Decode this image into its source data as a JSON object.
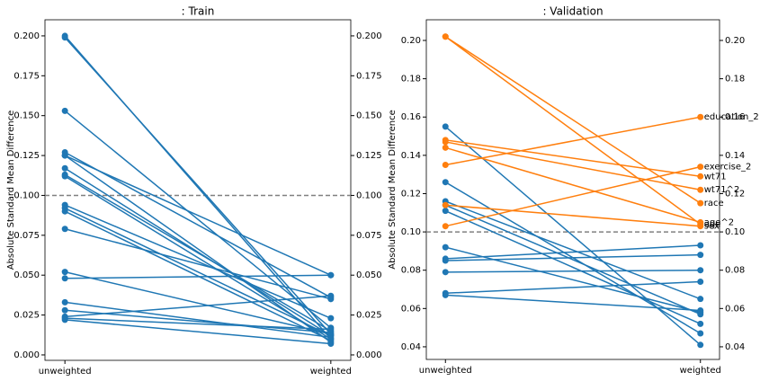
{
  "chart_data": [
    {
      "type": "slope",
      "title": ": Train",
      "ylabel": "Absolute Standard Mean Difference",
      "categories": [
        "unweighted",
        "weighted"
      ],
      "ylim": [
        -0.0034,
        0.2101
      ],
      "yticks": [
        {
          "value": 0,
          "label": "0.000"
        },
        0.025,
        {
          "value": 0.05,
          "label": "0.050"
        },
        0.075,
        {
          "value": 0.1,
          "label": "0.100"
        },
        0.125,
        {
          "value": 0.15,
          "label": "0.150"
        },
        0.175,
        {
          "value": 0.2,
          "label": "0.200"
        }
      ],
      "hline": 0.1,
      "series": [
        {
          "color": "#1f77b4",
          "values": [
            0.2,
            0.01
          ]
        },
        {
          "color": "#1f77b4",
          "values": [
            0.199,
            0.013
          ]
        },
        {
          "color": "#1f77b4",
          "values": [
            0.153,
            0.017
          ]
        },
        {
          "color": "#1f77b4",
          "values": [
            0.127,
            0.036
          ]
        },
        {
          "color": "#1f77b4",
          "values": [
            0.125,
            0.05
          ]
        },
        {
          "color": "#1f77b4",
          "values": [
            0.125,
            0.008
          ]
        },
        {
          "color": "#1f77b4",
          "values": [
            0.117,
            0.012
          ]
        },
        {
          "color": "#1f77b4",
          "values": [
            0.113,
            0.015
          ]
        },
        {
          "color": "#1f77b4",
          "values": [
            0.112,
            0.01
          ]
        },
        {
          "color": "#1f77b4",
          "values": [
            0.094,
            0.023
          ]
        },
        {
          "color": "#1f77b4",
          "values": [
            0.092,
            0.012
          ]
        },
        {
          "color": "#1f77b4",
          "values": [
            0.09,
            0.009
          ]
        },
        {
          "color": "#1f77b4",
          "values": [
            0.079,
            0.035
          ]
        },
        {
          "color": "#1f77b4",
          "values": [
            0.052,
            0.013
          ]
        },
        {
          "color": "#1f77b4",
          "values": [
            0.048,
            0.05
          ]
        },
        {
          "color": "#1f77b4",
          "values": [
            0.033,
            0.011
          ]
        },
        {
          "color": "#1f77b4",
          "values": [
            0.028,
            0.014
          ]
        },
        {
          "color": "#1f77b4",
          "values": [
            0.024,
            0.037
          ]
        },
        {
          "color": "#1f77b4",
          "values": [
            0.023,
            0.016
          ]
        },
        {
          "color": "#1f77b4",
          "values": [
            0.022,
            0.007
          ]
        }
      ]
    },
    {
      "type": "slope",
      "title": ": Validation",
      "ylabel": "Absolute Standard Mean Difference",
      "categories": [
        "unweighted",
        "weighted"
      ],
      "ylim": [
        0.0334,
        0.2108
      ],
      "yticks": [
        0.04,
        0.06,
        0.08,
        {
          "value": 0.1,
          "label": "0.10"
        },
        0.12,
        0.14,
        0.16,
        0.18,
        {
          "value": 0.2,
          "label": "0.20"
        }
      ],
      "hline": 0.1,
      "series": [
        {
          "color": "#1f77b4",
          "values": [
            0.155,
            0.041
          ]
        },
        {
          "color": "#1f77b4",
          "values": [
            0.126,
            0.047
          ]
        },
        {
          "color": "#1f77b4",
          "values": [
            0.116,
            0.065
          ]
        },
        {
          "color": "#1f77b4",
          "values": [
            0.114,
            0.057
          ]
        },
        {
          "color": "#1f77b4",
          "values": [
            0.111,
            0.052
          ]
        },
        {
          "color": "#1f77b4",
          "values": [
            0.092,
            0.058
          ]
        },
        {
          "color": "#1f77b4",
          "values": [
            0.086,
            0.093
          ]
        },
        {
          "color": "#1f77b4",
          "values": [
            0.085,
            0.088
          ]
        },
        {
          "color": "#1f77b4",
          "values": [
            0.079,
            0.08
          ]
        },
        {
          "color": "#1f77b4",
          "values": [
            0.068,
            0.074
          ]
        },
        {
          "color": "#1f77b4",
          "values": [
            0.067,
            0.059
          ]
        },
        {
          "name": "education_2",
          "color": "#ff7f0e",
          "values": [
            0.135,
            0.16
          ]
        },
        {
          "name": "exercise_2",
          "color": "#ff7f0e",
          "values": [
            0.103,
            0.134
          ]
        },
        {
          "name": "wt71",
          "color": "#ff7f0e",
          "values": [
            0.148,
            0.129
          ]
        },
        {
          "name": "wt71^2",
          "color": "#ff7f0e",
          "values": [
            0.147,
            0.122
          ]
        },
        {
          "name": "race",
          "color": "#ff7f0e",
          "values": [
            0.202,
            0.115
          ]
        },
        {
          "name": "age^2",
          "color": "#ff7f0e",
          "values": [
            0.144,
            0.105
          ]
        },
        {
          "name": "age",
          "color": "#ff7f0e",
          "values": [
            0.202,
            0.104
          ]
        },
        {
          "name": "sex",
          "color": "#ff7f0e",
          "values": [
            0.114,
            0.103
          ]
        }
      ]
    }
  ]
}
